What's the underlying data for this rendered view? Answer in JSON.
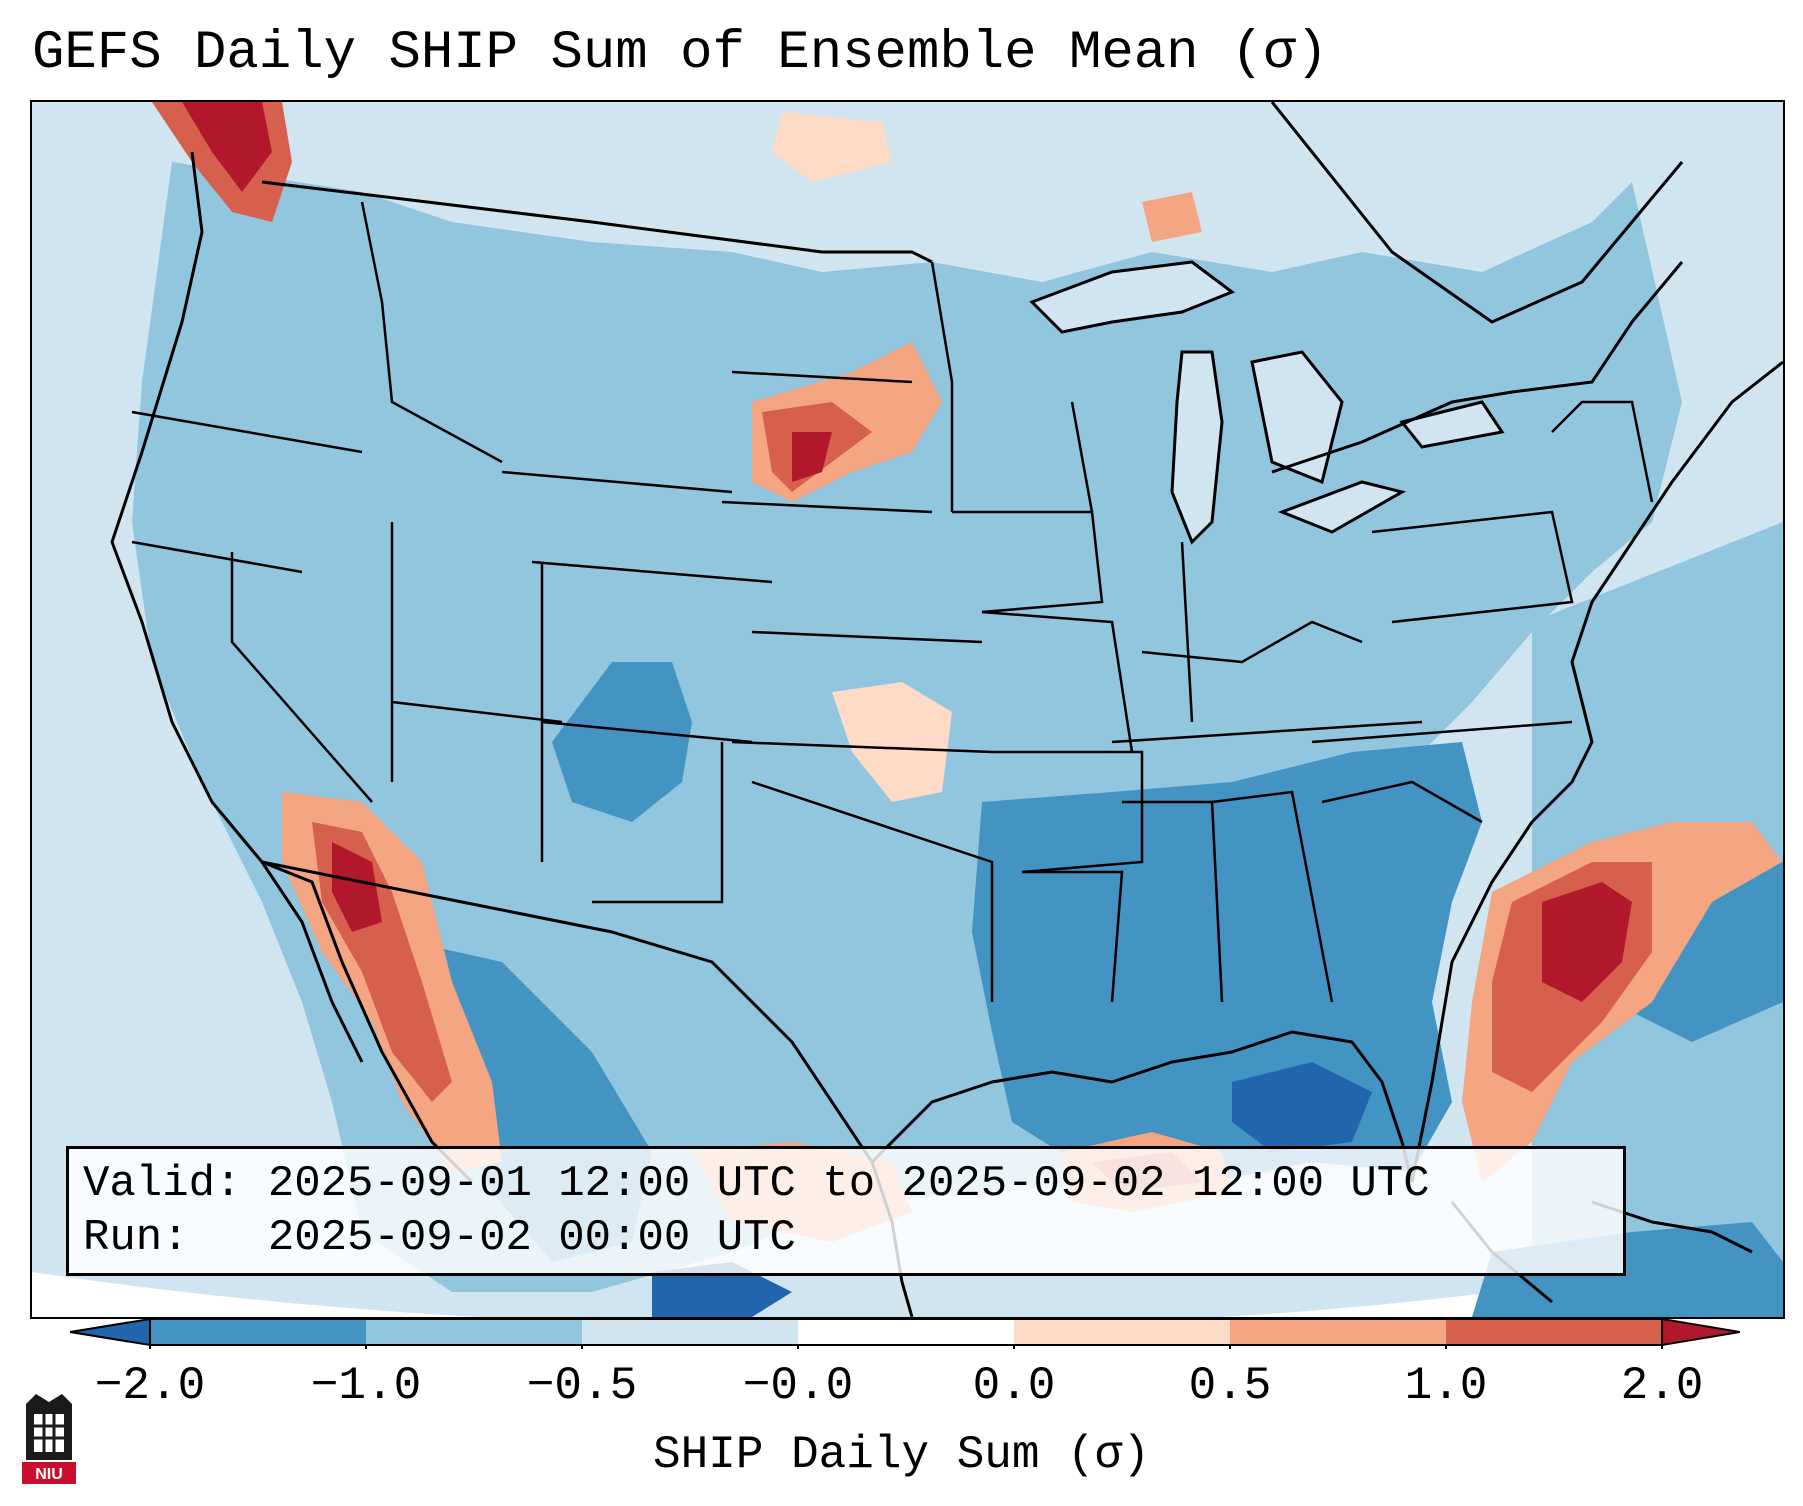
{
  "title": "GEFS Daily SHIP Sum of Ensemble Mean (σ)",
  "info": {
    "valid_line": "Valid: 2025-09-01 12:00 UTC to 2025-09-02 12:00 UTC",
    "run_line": "Run:   2025-09-02 00:00 UTC"
  },
  "colorbar": {
    "label": "SHIP Daily Sum (σ)",
    "ticks": [
      "−2.0",
      "−1.0",
      "−0.5",
      "−0.0",
      "0.0",
      "0.5",
      "1.0",
      "2.0"
    ],
    "colors": [
      "#2166ac",
      "#4393c3",
      "#92c5de",
      "#d1e5f0",
      "#fddbc7",
      "#f4a582",
      "#d6604d",
      "#b2182b"
    ]
  },
  "logo": {
    "text": "NIU"
  },
  "palette": {
    "ocean": "#d1e5f0",
    "light_blue": "#92c5de",
    "mid_blue": "#4393c3",
    "dark_blue": "#2166ac",
    "light_red": "#fddbc7",
    "mid_red": "#f4a582",
    "red": "#d6604d",
    "dark_red": "#b2182b"
  }
}
